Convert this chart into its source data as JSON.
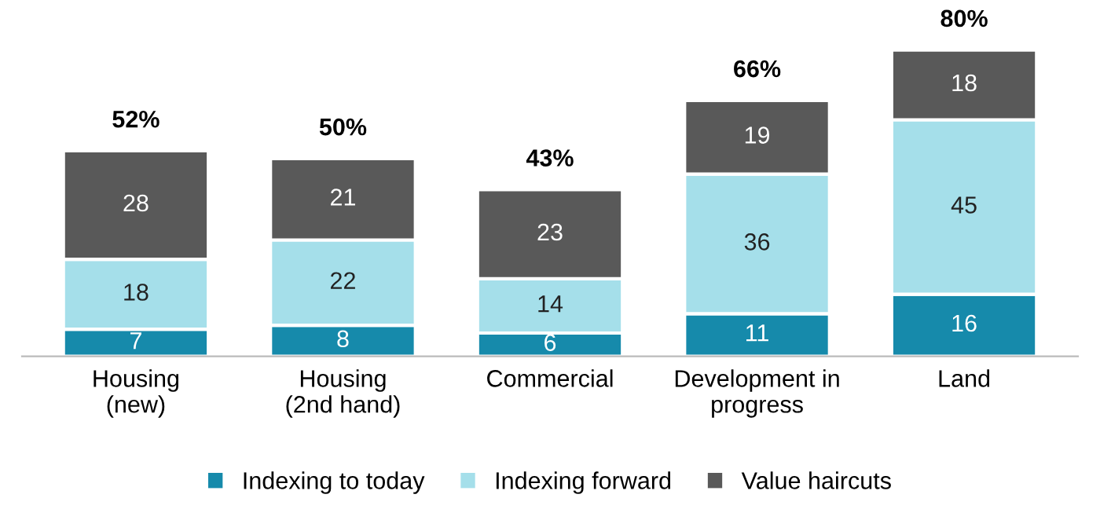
{
  "chart_data": {
    "type": "bar",
    "stacked": true,
    "data_labels": true,
    "legend": "bottom",
    "grid": false,
    "categories": [
      "Housing\n(new)",
      "Housing\n(2nd hand)",
      "Commercial",
      "Development in\nprogress",
      "Land"
    ],
    "series": [
      {
        "name": "Indexing to today",
        "color": "#168aab",
        "values": [
          7,
          8,
          6,
          11,
          16
        ]
      },
      {
        "name": "Indexing forward",
        "color": "#a5dfea",
        "values": [
          18,
          22,
          14,
          36,
          45
        ]
      },
      {
        "name": "Value haircuts",
        "color": "#595959",
        "values": [
          28,
          21,
          23,
          19,
          18
        ]
      }
    ],
    "totals": [
      "52%",
      "50%",
      "43%",
      "66%",
      "80%"
    ]
  }
}
